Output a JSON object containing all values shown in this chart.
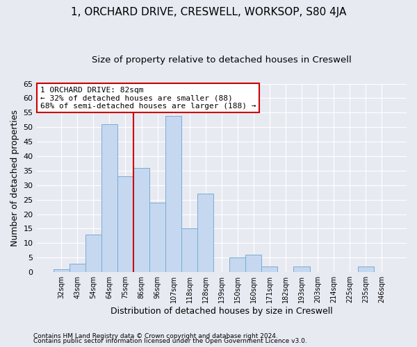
{
  "title": "1, ORCHARD DRIVE, CRESWELL, WORKSOP, S80 4JA",
  "subtitle": "Size of property relative to detached houses in Creswell",
  "xlabel": "Distribution of detached houses by size in Creswell",
  "ylabel": "Number of detached properties",
  "categories": [
    "32sqm",
    "43sqm",
    "54sqm",
    "64sqm",
    "75sqm",
    "86sqm",
    "96sqm",
    "107sqm",
    "118sqm",
    "128sqm",
    "139sqm",
    "150sqm",
    "160sqm",
    "171sqm",
    "182sqm",
    "193sqm",
    "203sqm",
    "214sqm",
    "225sqm",
    "235sqm",
    "246sqm"
  ],
  "values": [
    1,
    3,
    13,
    51,
    33,
    36,
    24,
    54,
    15,
    27,
    0,
    5,
    6,
    2,
    0,
    2,
    0,
    0,
    0,
    2,
    0
  ],
  "bar_color": "#c5d8f0",
  "bar_edgecolor": "#7aaad4",
  "background_color": "#e8eaf2",
  "grid_color": "#ffffff",
  "ylim": [
    0,
    65
  ],
  "yticks": [
    0,
    5,
    10,
    15,
    20,
    25,
    30,
    35,
    40,
    45,
    50,
    55,
    60,
    65
  ],
  "vline_x": 4.5,
  "vline_color": "#cc0000",
  "annotation_title": "1 ORCHARD DRIVE: 82sqm",
  "annotation_line1": "← 32% of detached houses are smaller (88)",
  "annotation_line2": "68% of semi-detached houses are larger (188) →",
  "annotation_box_edgecolor": "#cc0000",
  "annotation_box_facecolor": "#ffffff",
  "footnote1": "Contains HM Land Registry data © Crown copyright and database right 2024.",
  "footnote2": "Contains public sector information licensed under the Open Government Licence v3.0.",
  "title_fontsize": 11,
  "subtitle_fontsize": 9.5,
  "xlabel_fontsize": 9,
  "ylabel_fontsize": 9,
  "tick_fontsize": 8,
  "xtick_fontsize": 7,
  "annotation_fontsize": 8,
  "footnote_fontsize": 6.5
}
